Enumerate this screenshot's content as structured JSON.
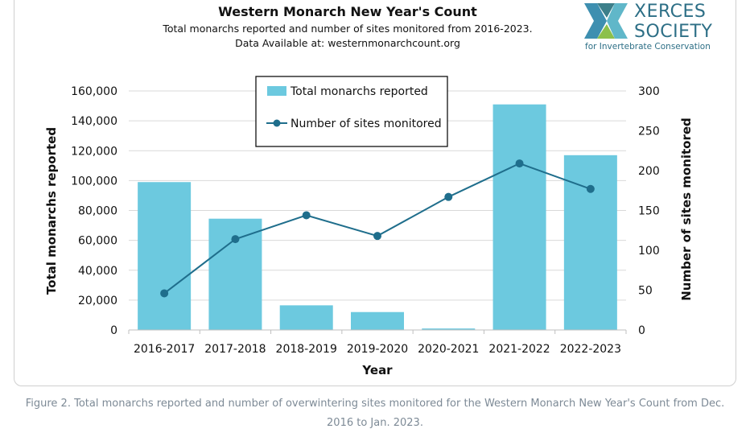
{
  "logo": {
    "text_line1": "XERCES",
    "text_line2": "SOCIETY",
    "tagline": "for Invertebrate Conservation",
    "colors": [
      "#3e8fb0",
      "#60b7c9",
      "#3c7f8a",
      "#8cc04b"
    ]
  },
  "caption": "Figure 2. Total monarchs reported and number of overwintering sites monitored for the Western Monarch New Year's Count from Dec. 2016 to Jan. 2023.",
  "chart_data": {
    "type": "bar",
    "title": "Western Monarch New Year's Count",
    "subtitle_lines": [
      "Total monarchs reported and number of sites monitored from 2016-2023.",
      "Data Available at: westernmonarchcount.org"
    ],
    "categories": [
      "2016-2017",
      "2017-2018",
      "2018-2019",
      "2019-2020",
      "2020-2021",
      "2021-2022",
      "2022-2023"
    ],
    "xlabel": "Year",
    "ylabel": "Total monarchs reported",
    "y2label": "Number of sites monitored",
    "ylim": [
      0,
      160000
    ],
    "y_ticks": [
      "0",
      "20,000",
      "40,000",
      "60,000",
      "80,000",
      "100,000",
      "120,000",
      "140,000",
      "160,000"
    ],
    "y2lim": [
      0,
      300
    ],
    "y2_ticks": [
      "0",
      "50",
      "100",
      "150",
      "200",
      "250",
      "300"
    ],
    "grid": true,
    "legend_position": "top-center",
    "series": [
      {
        "name": "Total monarchs reported",
        "type": "bar",
        "axis": "left",
        "color": "#6cc9df",
        "values": [
          99000,
          74500,
          16500,
          12000,
          1000,
          151000,
          117000
        ]
      },
      {
        "name": "Number of sites monitored",
        "type": "line",
        "axis": "right",
        "color": "#1f6e8c",
        "values": [
          46,
          114,
          144,
          118,
          167,
          209,
          177
        ]
      }
    ]
  }
}
